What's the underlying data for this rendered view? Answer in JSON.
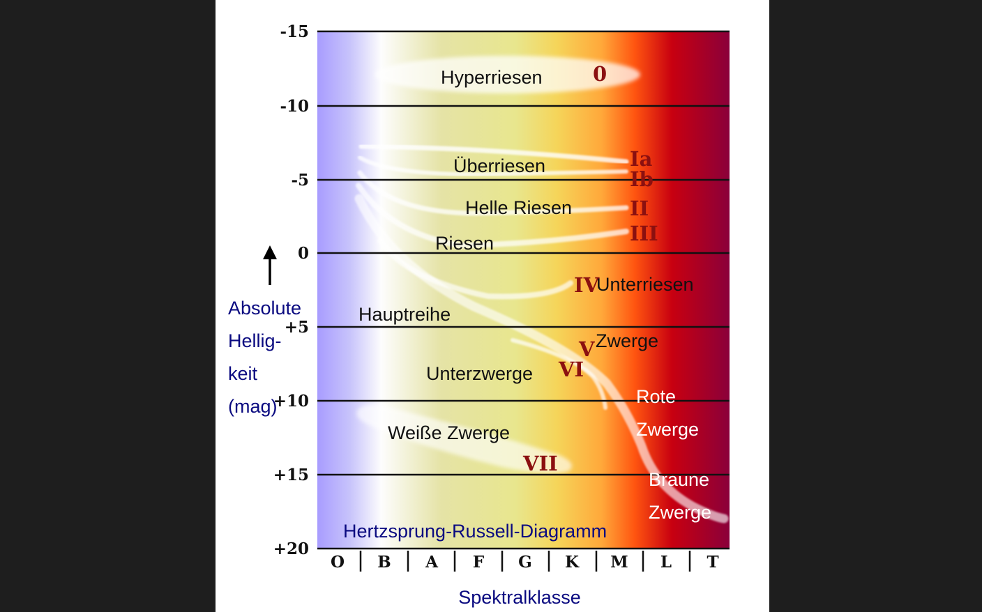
{
  "diagram": {
    "title": "Hertzsprung-Russell-Diagramm",
    "x_axis_label": "Spektralklasse",
    "y_axis_label_lines": [
      "Absolute",
      "Hellig-",
      "keit",
      "(mag)"
    ],
    "y_ticks": [
      "-15",
      "-10",
      "-5",
      "0",
      "+5",
      "+10",
      "+15",
      "+20"
    ],
    "spectral_classes": [
      "O",
      "B",
      "A",
      "F",
      "G",
      "K",
      "M",
      "L",
      "T"
    ],
    "regions": {
      "hyperriesen": "Hyperriesen",
      "ueberriesen": "Überriesen",
      "helle_riesen": "Helle Riesen",
      "riesen": "Riesen",
      "unterriesen": "Unterriesen",
      "hauptreihe": "Hauptreihe",
      "zwerge": "Zwerge",
      "unterzwerge": "Unterzwerge",
      "weisse_zwerge": "Weiße Zwerge",
      "rote_zwerge_1": "Rote",
      "rote_zwerge_2": "Zwerge",
      "braune_zwerge_1": "Braune",
      "braune_zwerge_2": "Zwerge"
    },
    "luminosity_classes": {
      "c0": "0",
      "ia": "Ia",
      "ib": "Ib",
      "ii": "II",
      "iii": "III",
      "iv": "IV",
      "v": "V",
      "vi": "VI",
      "vii": "VII"
    },
    "colors": {
      "page_background": "#1e1e1e",
      "panel_background": "#ffffff",
      "axis_text": "#0a0a80",
      "class_label": "#8b1010",
      "white_label": "#ffffff",
      "gradient": [
        "#a89cff",
        "#fdfdfd",
        "#e5e3a6",
        "#e6e28a",
        "#ffb24a",
        "#ff5a10",
        "#c80010",
        "#8a003a"
      ]
    }
  }
}
